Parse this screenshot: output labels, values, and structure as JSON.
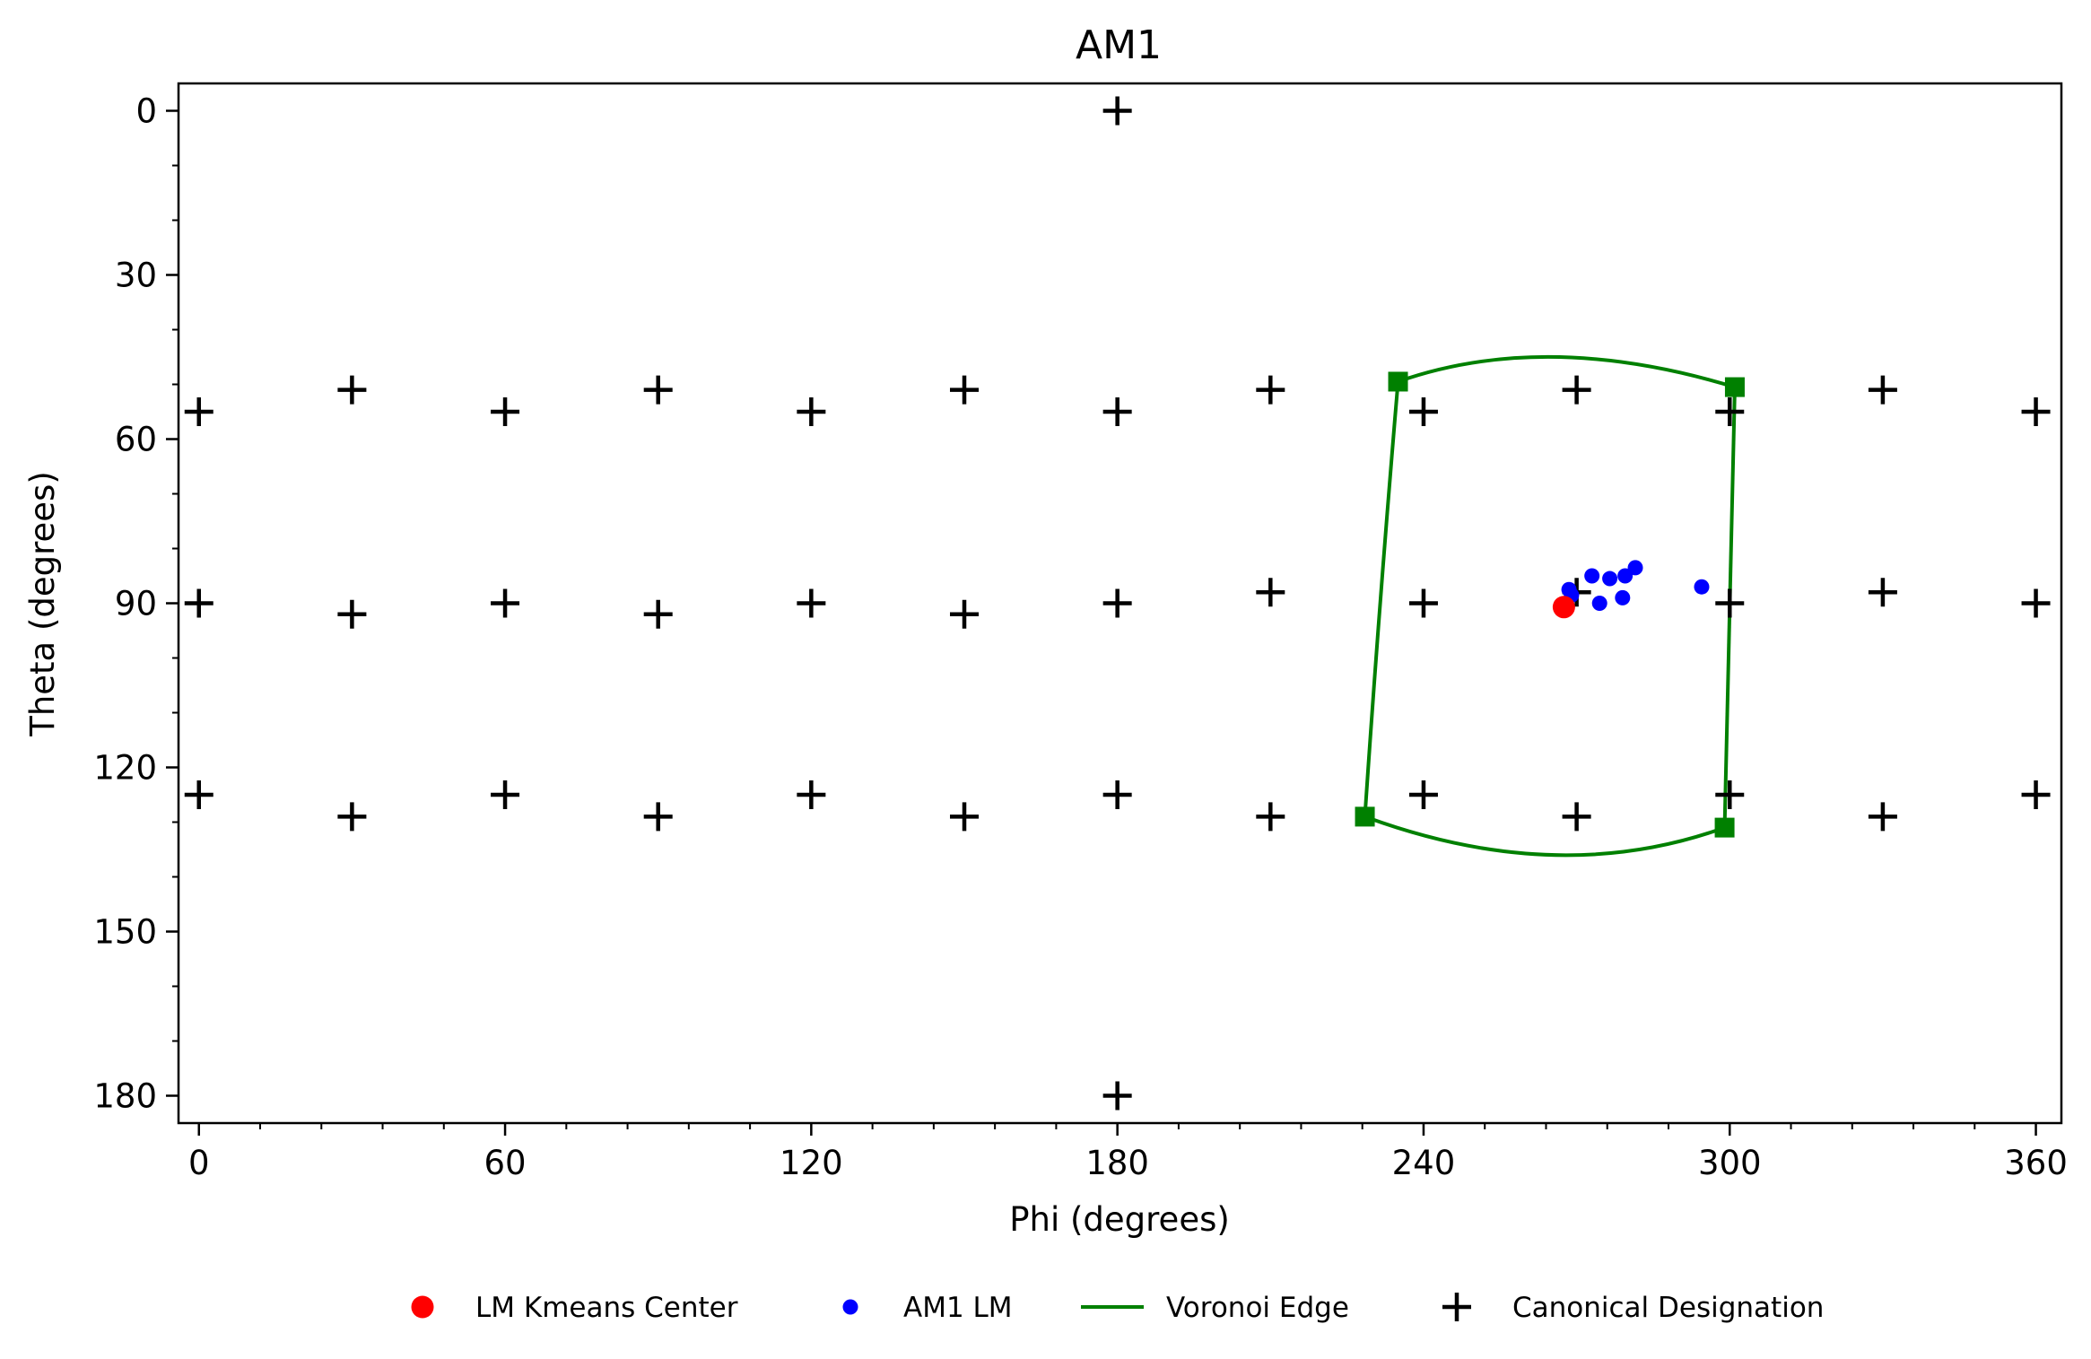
{
  "chart_data": {
    "type": "scatter",
    "title": "AM1",
    "xlabel": "Phi (degrees)",
    "ylabel": "Theta (degrees)",
    "xlim": [
      -4,
      365
    ],
    "ylim": [
      185,
      -5
    ],
    "y_inverted": true,
    "xticks": [
      0,
      60,
      120,
      180,
      240,
      300,
      360
    ],
    "yticks": [
      0,
      30,
      60,
      90,
      120,
      150,
      180
    ],
    "x_minor_step": 12,
    "y_minor_step": 10,
    "grid": false,
    "legend_position": "bottom-center",
    "series": [
      {
        "name": "LM Kmeans Center",
        "kind": "points",
        "marker": "circle-large",
        "color": "#ff0000",
        "points": [
          [
            267.5,
            90.7
          ]
        ]
      },
      {
        "name": "AM1 LM",
        "kind": "points",
        "marker": "circle-small",
        "color": "#0000ff",
        "points": [
          [
            268.5,
            87.5
          ],
          [
            269.0,
            88.5
          ],
          [
            273.0,
            85.0
          ],
          [
            276.5,
            85.5
          ],
          [
            279.5,
            85.0
          ],
          [
            281.5,
            83.5
          ],
          [
            274.5,
            90.0
          ],
          [
            279.0,
            89.0
          ],
          [
            294.5,
            87.0
          ]
        ]
      },
      {
        "name": "Voronoi Edge",
        "kind": "lines",
        "color": "#008000",
        "vertices": [
          [
            235.0,
            49.5
          ],
          [
            301.0,
            50.5
          ],
          [
            299.0,
            131.0
          ],
          [
            228.5,
            129.0
          ]
        ],
        "segments": [
          [
            [
              235.0,
              49.5
            ],
            [
              266.0,
              45.0
            ],
            [
              301.0,
              50.5
            ]
          ],
          [
            [
              301.0,
              50.5
            ],
            [
              300.0,
              90.0
            ],
            [
              299.0,
              131.0
            ]
          ],
          [
            [
              228.5,
              129.0
            ],
            [
              265.0,
              136.0
            ],
            [
              299.0,
              131.0
            ]
          ],
          [
            [
              235.0,
              49.5
            ],
            [
              231.5,
              90.0
            ],
            [
              228.5,
              129.0
            ]
          ]
        ]
      },
      {
        "name": "Canonical Designation",
        "kind": "points",
        "marker": "plus",
        "color": "#000000",
        "points": [
          [
            180,
            0
          ],
          [
            180,
            180
          ],
          [
            0,
            55
          ],
          [
            30,
            51
          ],
          [
            60,
            55
          ],
          [
            90,
            51
          ],
          [
            120,
            55
          ],
          [
            150,
            51
          ],
          [
            180,
            55
          ],
          [
            210,
            51
          ],
          [
            240,
            55
          ],
          [
            270,
            51
          ],
          [
            300,
            55
          ],
          [
            330,
            51
          ],
          [
            360,
            55
          ],
          [
            0,
            90
          ],
          [
            30,
            92
          ],
          [
            60,
            90
          ],
          [
            90,
            92
          ],
          [
            120,
            90
          ],
          [
            150,
            92
          ],
          [
            180,
            90
          ],
          [
            210,
            88
          ],
          [
            240,
            90
          ],
          [
            270,
            88
          ],
          [
            300,
            90
          ],
          [
            330,
            88
          ],
          [
            360,
            90
          ],
          [
            0,
            125
          ],
          [
            30,
            129
          ],
          [
            60,
            125
          ],
          [
            90,
            129
          ],
          [
            120,
            125
          ],
          [
            150,
            129
          ],
          [
            180,
            125
          ],
          [
            210,
            129
          ],
          [
            240,
            125
          ],
          [
            270,
            129
          ],
          [
            300,
            125
          ],
          [
            330,
            129
          ],
          [
            360,
            125
          ]
        ]
      }
    ]
  }
}
